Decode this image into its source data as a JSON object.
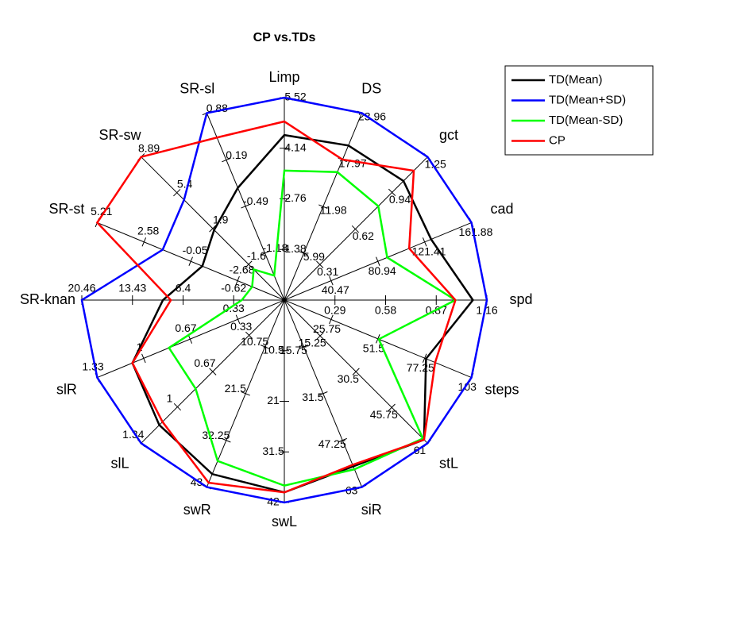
{
  "chart_data": {
    "type": "radar",
    "title": "CP vs.TDs",
    "axes": [
      {
        "name": "Limp",
        "lim": [
          0,
          5.52
        ],
        "ticks": [
          1.38,
          2.76,
          4.14,
          5.52
        ]
      },
      {
        "name": "DS",
        "lim": [
          0,
          23.96
        ],
        "ticks": [
          5.99,
          11.98,
          17.97,
          23.96
        ]
      },
      {
        "name": "gct",
        "lim": [
          0,
          1.25
        ],
        "ticks": [
          0.31,
          0.62,
          0.94,
          1.25
        ]
      },
      {
        "name": "cad",
        "lim": [
          0,
          161.88
        ],
        "ticks": [
          40.47,
          80.94,
          121.41,
          161.88
        ]
      },
      {
        "name": "spd",
        "lim": [
          0,
          1.16
        ],
        "ticks": [
          0.29,
          0.58,
          0.87,
          1.16
        ]
      },
      {
        "name": "steps",
        "lim": [
          0,
          103
        ],
        "ticks": [
          25.75,
          51.5,
          77.25,
          103
        ]
      },
      {
        "name": "stL",
        "lim": [
          0,
          61
        ],
        "ticks": [
          15.25,
          30.5,
          45.75,
          61
        ]
      },
      {
        "name": "siR",
        "lim": [
          0,
          63
        ],
        "ticks": [
          15.75,
          31.5,
          47.25,
          63
        ]
      },
      {
        "name": "swL",
        "lim": [
          0,
          42
        ],
        "ticks": [
          10.5,
          21,
          31.5,
          42
        ]
      },
      {
        "name": "swR",
        "lim": [
          0,
          43
        ],
        "ticks": [
          10.75,
          21.5,
          32.25,
          43
        ]
      },
      {
        "name": "slL",
        "lim": [
          0,
          1.34
        ],
        "ticks": [
          0.33,
          0.67,
          1,
          1.34
        ]
      },
      {
        "name": "slR",
        "lim": [
          0,
          1.33
        ],
        "ticks": [
          0.33,
          0.67,
          1,
          1.33
        ]
      },
      {
        "name": "SR-knan",
        "lim": [
          -7.65,
          20.46
        ],
        "ticks": [
          -0.62,
          6.4,
          13.43,
          20.46
        ]
      },
      {
        "name": "SR-st",
        "lim": [
          -5.31,
          5.21
        ],
        "ticks": [
          -2.68,
          -0.05,
          2.58,
          5.21
        ]
      },
      {
        "name": "SR-sw",
        "lim": [
          -5.09,
          8.89
        ],
        "ticks": [
          -1.6,
          1.9,
          5.4,
          8.89
        ]
      },
      {
        "name": "SR-sl",
        "lim": [
          -1.87,
          0.88
        ],
        "ticks": [
          -1.18,
          -0.49,
          0.19,
          0.88
        ]
      }
    ],
    "series": [
      {
        "name": "TD(Mean)",
        "color": "#000000",
        "values": [
          4.5,
          19.8,
          1.04,
          127,
          1.08,
          78,
          59.5,
          56,
          39.9,
          40,
          1.17,
          1.08,
          9.2,
          -0.7,
          1.76,
          -0.22
        ]
      },
      {
        "name": "TD(Mean+SD)",
        "color": "#0000ff",
        "values": [
          5.52,
          23.96,
          1.25,
          161.88,
          1.16,
          103,
          61,
          63,
          42,
          43,
          1.34,
          1.33,
          20.46,
          1.53,
          4.7,
          0.88
        ]
      },
      {
        "name": "TD(Mean-SD)",
        "color": "#00ff00",
        "values": [
          3.53,
          16.4,
          0.82,
          89,
          0.98,
          52,
          59,
          57,
          38.5,
          37,
          0.83,
          0.82,
          -1.75,
          -3.5,
          -2.1,
          -1.51
        ]
      },
      {
        "name": "CP",
        "color": "#ff0000",
        "values": [
          4.87,
          18,
          1.13,
          108,
          0.98,
          83,
          59.5,
          55.5,
          39.9,
          42,
          1.14,
          1.08,
          8.1,
          5.21,
          8.89,
          0.52
        ]
      }
    ],
    "legend": "upper right"
  }
}
